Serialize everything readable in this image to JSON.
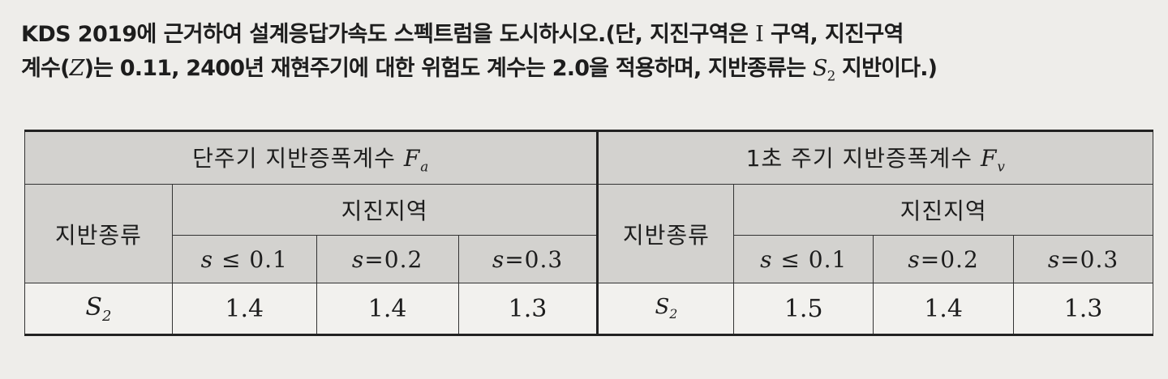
{
  "question": {
    "line1_text": "KDS 2019에 근거하여 설계응답가속도 스펙트럼을 도시하시오.(단, 지진구역은",
    "line1_zone_numeral": "Ⅰ",
    "line1_rest": "구역, 지진구역",
    "line2_pre": "계수(",
    "line2_z": "Z",
    "line2_mid": ")는 0.11, 2400년 재현주기에 대한 위험도 계수는 2.0을 적용하며, 지반종류는",
    "line2_soil_letter": "S",
    "line2_soil_sub": "2",
    "line2_post": "지반이다.)"
  },
  "table": {
    "fa_title": "단주기 지반증폭계수",
    "fa_symbol": "F",
    "fa_symbol_sub": "a",
    "fv_title": "1초 주기 지반증폭계수",
    "fv_symbol": "F",
    "fv_symbol_sub": "v",
    "soil_type_header": "지반종류",
    "zone_header": "지진지역",
    "s_conditions": [
      {
        "var": "s",
        "op": "≤",
        "val": "0.1"
      },
      {
        "var": "s",
        "op": "=",
        "val": "0.2"
      },
      {
        "var": "s",
        "op": "=",
        "val": "0.3"
      }
    ],
    "row": {
      "soil_letter": "S",
      "soil_sub": "2",
      "fa_values": [
        "1.4",
        "1.4",
        "1.3"
      ],
      "fv_values": [
        "1.5",
        "1.4",
        "1.3"
      ]
    }
  }
}
